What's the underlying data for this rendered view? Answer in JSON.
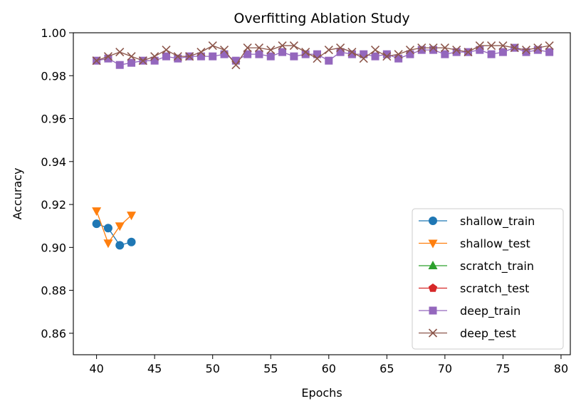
{
  "chart_data": {
    "type": "line",
    "title": "Overfitting Ablation Study",
    "xlabel": "Epochs",
    "ylabel": "Accuracy",
    "xlim": [
      38,
      80.8
    ],
    "ylim": [
      0.85,
      1.0
    ],
    "xticks": [
      40,
      45,
      50,
      55,
      60,
      65,
      70,
      75,
      80
    ],
    "yticks": [
      0.86,
      0.88,
      0.9,
      0.92,
      0.94,
      0.96,
      0.98,
      1.0
    ],
    "ytick_labels": [
      "0.86",
      "0.88",
      "0.90",
      "0.92",
      "0.94",
      "0.96",
      "0.98",
      "1.00"
    ],
    "grid": false,
    "legend_position": "lower-right",
    "series": [
      {
        "name": "shallow_train",
        "color": "#1f77b4",
        "marker": "circle",
        "x": [
          40,
          41,
          42,
          43
        ],
        "y": [
          0.911,
          0.909,
          0.901,
          0.9025
        ]
      },
      {
        "name": "shallow_test",
        "color": "#ff7f0e",
        "marker": "triangle-down",
        "x": [
          40,
          41,
          42,
          43
        ],
        "y": [
          0.917,
          0.902,
          0.91,
          0.915
        ]
      },
      {
        "name": "scratch_train",
        "color": "#2ca02c",
        "marker": "triangle-up",
        "x": [],
        "y": []
      },
      {
        "name": "scratch_test",
        "color": "#d62728",
        "marker": "pentagon",
        "x": [],
        "y": []
      },
      {
        "name": "deep_train",
        "color": "#9467bd",
        "marker": "square",
        "x": [
          40,
          41,
          42,
          43,
          44,
          45,
          46,
          47,
          48,
          49,
          50,
          51,
          52,
          53,
          54,
          55,
          56,
          57,
          58,
          59,
          60,
          61,
          62,
          63,
          64,
          65,
          66,
          67,
          68,
          69,
          70,
          71,
          72,
          73,
          74,
          75,
          76,
          77,
          78,
          79
        ],
        "y": [
          0.987,
          0.988,
          0.985,
          0.986,
          0.987,
          0.987,
          0.989,
          0.988,
          0.989,
          0.989,
          0.989,
          0.99,
          0.987,
          0.99,
          0.99,
          0.989,
          0.991,
          0.989,
          0.99,
          0.99,
          0.987,
          0.991,
          0.99,
          0.99,
          0.989,
          0.99,
          0.988,
          0.99,
          0.992,
          0.992,
          0.99,
          0.991,
          0.991,
          0.992,
          0.99,
          0.991,
          0.993,
          0.991,
          0.992,
          0.991
        ]
      },
      {
        "name": "deep_test",
        "color": "#8c564b",
        "marker": "x",
        "x": [
          40,
          41,
          42,
          43,
          44,
          45,
          46,
          47,
          48,
          49,
          50,
          51,
          52,
          53,
          54,
          55,
          56,
          57,
          58,
          59,
          60,
          61,
          62,
          63,
          64,
          65,
          66,
          67,
          68,
          69,
          70,
          71,
          72,
          73,
          74,
          75,
          76,
          77,
          78,
          79
        ],
        "y": [
          0.987,
          0.989,
          0.991,
          0.989,
          0.987,
          0.989,
          0.992,
          0.989,
          0.989,
          0.991,
          0.994,
          0.992,
          0.985,
          0.993,
          0.993,
          0.992,
          0.994,
          0.994,
          0.991,
          0.988,
          0.992,
          0.993,
          0.991,
          0.988,
          0.992,
          0.989,
          0.99,
          0.992,
          0.993,
          0.993,
          0.993,
          0.992,
          0.991,
          0.994,
          0.994,
          0.994,
          0.993,
          0.992,
          0.993,
          0.994
        ]
      }
    ]
  }
}
